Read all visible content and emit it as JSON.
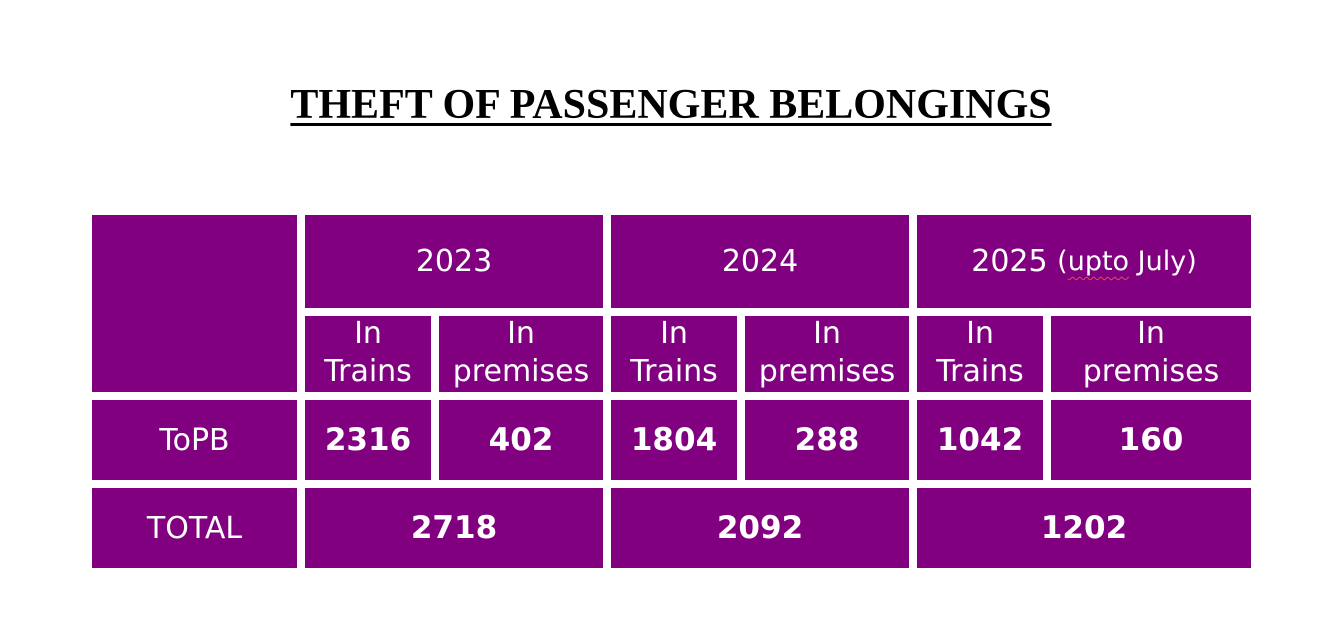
{
  "title": "THEFT OF PASSENGER BELONGINGS",
  "years": [
    {
      "label": "2023",
      "suffix_open": "",
      "suffix_word": "",
      "suffix_close": ""
    },
    {
      "label": "2024",
      "suffix_open": "",
      "suffix_word": "",
      "suffix_close": ""
    },
    {
      "label": "2025",
      "suffix_open": "(",
      "suffix_word": "upto",
      "suffix_close": " July)"
    }
  ],
  "subheaders": {
    "trains": {
      "line1": "In",
      "line2": "Trains"
    },
    "premises": {
      "line1": "In",
      "line2": "premises"
    }
  },
  "rows": {
    "topb": {
      "label": "ToPB",
      "values": [
        "2316",
        "402",
        "1804",
        "288",
        "1042",
        "160"
      ]
    },
    "total": {
      "label": "TOTAL",
      "values": [
        "2718",
        "2092",
        "1202"
      ]
    }
  },
  "colors": {
    "cell_background": "#800080",
    "cell_text": "#ffffff"
  }
}
